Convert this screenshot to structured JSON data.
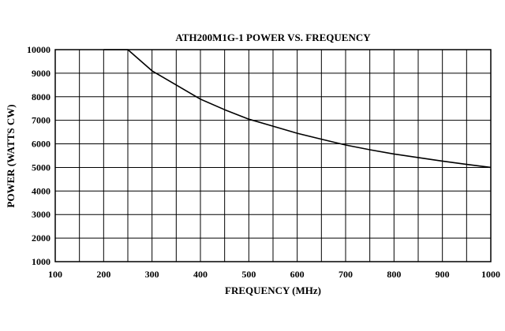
{
  "chart_data": {
    "type": "line",
    "title": "ATH200M1G-1 POWER VS. FREQUENCY",
    "xlabel": "FREQUENCY (MHz)",
    "ylabel": "POWER (WATTS CW)",
    "xlim": [
      100,
      1000
    ],
    "ylim": [
      1000,
      10000
    ],
    "xticks": [
      "100",
      "200",
      "300",
      "400",
      "500",
      "600",
      "700",
      "800",
      "900",
      "1000"
    ],
    "yticks": [
      "1000",
      "2000",
      "3000",
      "4000",
      "5000",
      "6000",
      "7000",
      "8000",
      "9000",
      "10000"
    ],
    "grid": true,
    "x_grid_step": 50,
    "y_grid_step": 1000,
    "series": [
      {
        "x": [
          200,
          250,
          300,
          350,
          400,
          450,
          500,
          550,
          600,
          650,
          700,
          750,
          800,
          850,
          900,
          950,
          1000
        ],
        "values": [
          10000,
          10000,
          9100,
          8500,
          7900,
          7450,
          7050,
          6750,
          6450,
          6200,
          5950,
          5750,
          5570,
          5420,
          5270,
          5130,
          5000
        ]
      }
    ]
  }
}
